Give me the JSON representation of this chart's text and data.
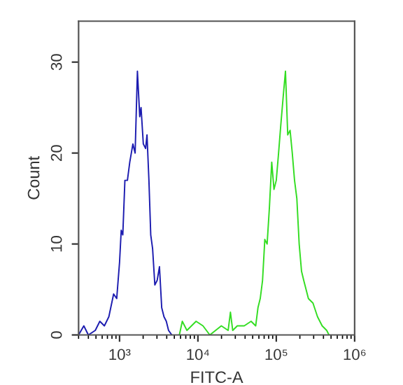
{
  "chart_data": {
    "type": "line",
    "xlabel": "FITC-A",
    "ylabel": "Count",
    "log": "x",
    "xlim": [
      300,
      1000000
    ],
    "ylim": [
      0,
      34.5
    ],
    "xticks": [
      {
        "value": 1000,
        "label": "10³"
      },
      {
        "value": 10000,
        "label": "10⁴"
      },
      {
        "value": 100000,
        "label": "10⁵"
      },
      {
        "value": 1000000,
        "label": "10⁶"
      }
    ],
    "yticks": [
      0,
      10,
      20,
      30
    ],
    "grid": false,
    "marker": "none",
    "line_style": "solid",
    "series": [
      {
        "color": "#1c1cb0",
        "x": [
          300,
          350,
          400,
          490,
          560,
          640,
          730,
          840,
          920,
          1000,
          1050,
          1100,
          1170,
          1260,
          1350,
          1480,
          1580,
          1690,
          1810,
          1880,
          2010,
          2150,
          2240,
          2370,
          2500,
          2640,
          2820,
          3020,
          3230,
          3450,
          3690,
          3950,
          4220,
          4640
        ],
        "values": [
          0,
          1,
          0,
          0.5,
          1.5,
          1,
          2,
          4.5,
          4,
          8,
          11.5,
          11,
          17,
          17,
          19,
          21,
          20,
          29,
          24,
          25,
          21,
          20.5,
          22,
          17,
          11,
          9.5,
          5.5,
          6,
          7.5,
          3,
          2,
          1.5,
          0.5,
          0
        ]
      },
      {
        "color": "#33dd22",
        "x": [
          5800,
          6320,
          7240,
          8280,
          9480,
          11600,
          14200,
          19900,
          24300,
          26000,
          27800,
          31800,
          39000,
          47700,
          54600,
          58400,
          62400,
          66800,
          71400,
          76400,
          81700,
          87500,
          93500,
          100000,
          107000,
          114000,
          122000,
          131000,
          140000,
          150000,
          160000,
          171000,
          183000,
          196000,
          210000,
          224000,
          240000,
          257000,
          294000,
          336000,
          385000,
          440000,
          471000
        ],
        "values": [
          0,
          1.5,
          0.5,
          1,
          1.5,
          1,
          0,
          1,
          0.5,
          2.5,
          0.5,
          1,
          1,
          1.5,
          1,
          3,
          4,
          6,
          10.5,
          10,
          14,
          19,
          16,
          17,
          20,
          23,
          26,
          29,
          22,
          22.5,
          20,
          17,
          15,
          10,
          7,
          6,
          5,
          4,
          3.5,
          2,
          1,
          0.5,
          0
        ]
      }
    ]
  }
}
